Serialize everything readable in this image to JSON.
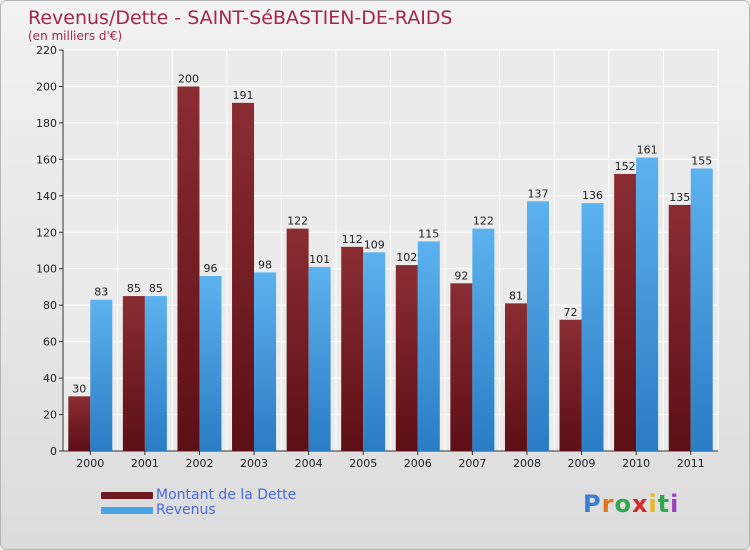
{
  "chart_data": {
    "type": "bar",
    "title": "Revenus/Dette - SAINT-SéBASTIEN-DE-RAIDS",
    "subtitle": "(en milliers d'€)",
    "categories": [
      "2000",
      "2001",
      "2002",
      "2003",
      "2004",
      "2005",
      "2006",
      "2007",
      "2008",
      "2009",
      "2010",
      "2011"
    ],
    "series": [
      {
        "name": "Montant de la Dette",
        "color": "#7a1f25",
        "values": [
          30,
          85,
          200,
          191,
          122,
          112,
          102,
          92,
          81,
          72,
          152,
          135
        ]
      },
      {
        "name": "Revenus",
        "color": "#4aa3e3",
        "values": [
          83,
          85,
          96,
          98,
          101,
          109,
          115,
          122,
          137,
          136,
          161,
          155
        ]
      }
    ],
    "ylim": [
      0,
      220
    ],
    "yticks": [
      0,
      20,
      40,
      60,
      80,
      100,
      120,
      140,
      160,
      180,
      200,
      220
    ],
    "grid": true,
    "legend": "bottom-left"
  },
  "brand": {
    "letters": [
      "P",
      "r",
      "o",
      "x",
      "i",
      "t",
      "i"
    ],
    "colors": [
      "#3b7fd4",
      "#e8741a",
      "#2fa84f",
      "#d42a2a",
      "#e8b81a",
      "#2fa84f",
      "#9b3fbf"
    ]
  }
}
